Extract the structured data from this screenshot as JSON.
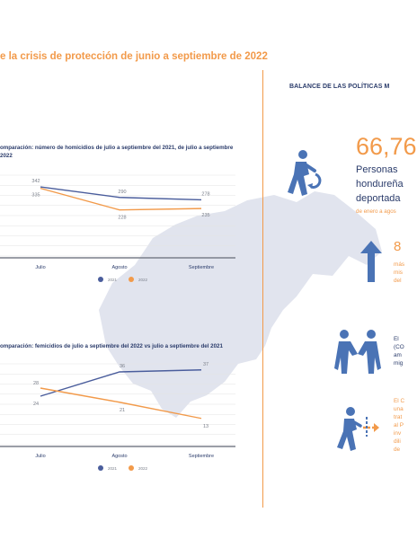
{
  "page": {
    "title": "e la crisis de protección de junio a septiembre de 2022",
    "right_heading": "BALANCE DE LAS POLÍTICAS M"
  },
  "colors": {
    "accent_orange": "#F29A4A",
    "navy": "#2B3C6B",
    "series_2021": "#4A5D9C",
    "series_2022": "#F29A4A",
    "icon_blue": "#4A73B5",
    "map_gray": "#E1E4EE"
  },
  "chart_data": [
    {
      "type": "line",
      "title_lines": [
        "omparación: número de homicidios de julio a septiembre del 2021, de julio a septiembre",
        "2022"
      ],
      "categories": [
        "Julio",
        "Agosto",
        "Septiembre"
      ],
      "series": [
        {
          "name": "2021",
          "values": [
            342,
            290,
            278
          ]
        },
        {
          "name": "2022",
          "values": [
            335,
            228,
            235
          ]
        }
      ],
      "data_labels": {
        "2021": [
          "342",
          "290",
          "278"
        ],
        "2022": [
          "335",
          "228",
          "235"
        ]
      },
      "ylim": [
        0,
        400
      ],
      "grid": true,
      "legend": "bottom"
    },
    {
      "type": "line",
      "title_lines": [
        "omparación: femicidios de julio a septiembre del 2022 vs julio a septiembre del 2021"
      ],
      "categories": [
        "Julio",
        "Agosto",
        "Septiembre"
      ],
      "series": [
        {
          "name": "2021",
          "values": [
            24,
            36,
            37
          ]
        },
        {
          "name": "2022",
          "values": [
            28,
            21,
            13
          ]
        }
      ],
      "data_labels": {
        "2021": [
          "24",
          "36",
          "37"
        ],
        "2022": [
          "28",
          "21",
          "13"
        ]
      },
      "ylim": [
        0,
        40
      ],
      "grid": true,
      "legend": "bottom"
    }
  ],
  "stats": {
    "deported": {
      "number": "66,76",
      "label_lines": [
        "Personas",
        "hondureña",
        "deportada"
      ],
      "range": "de enero a agos",
      "icon": "deported-person-icon"
    },
    "stat2": {
      "number": "8",
      "lines": [
        "más",
        "mis",
        "del"
      ],
      "icon": "arrow-up-icon"
    },
    "stat3": {
      "lines": [
        "El",
        "(CO",
        "am",
        "mig"
      ],
      "icon": "people-helping-icon"
    },
    "stat4": {
      "lines": [
        "El C",
        "una",
        "trat",
        "al P",
        "inv",
        "dili",
        "de"
      ],
      "icon": "person-walking-icon"
    }
  }
}
